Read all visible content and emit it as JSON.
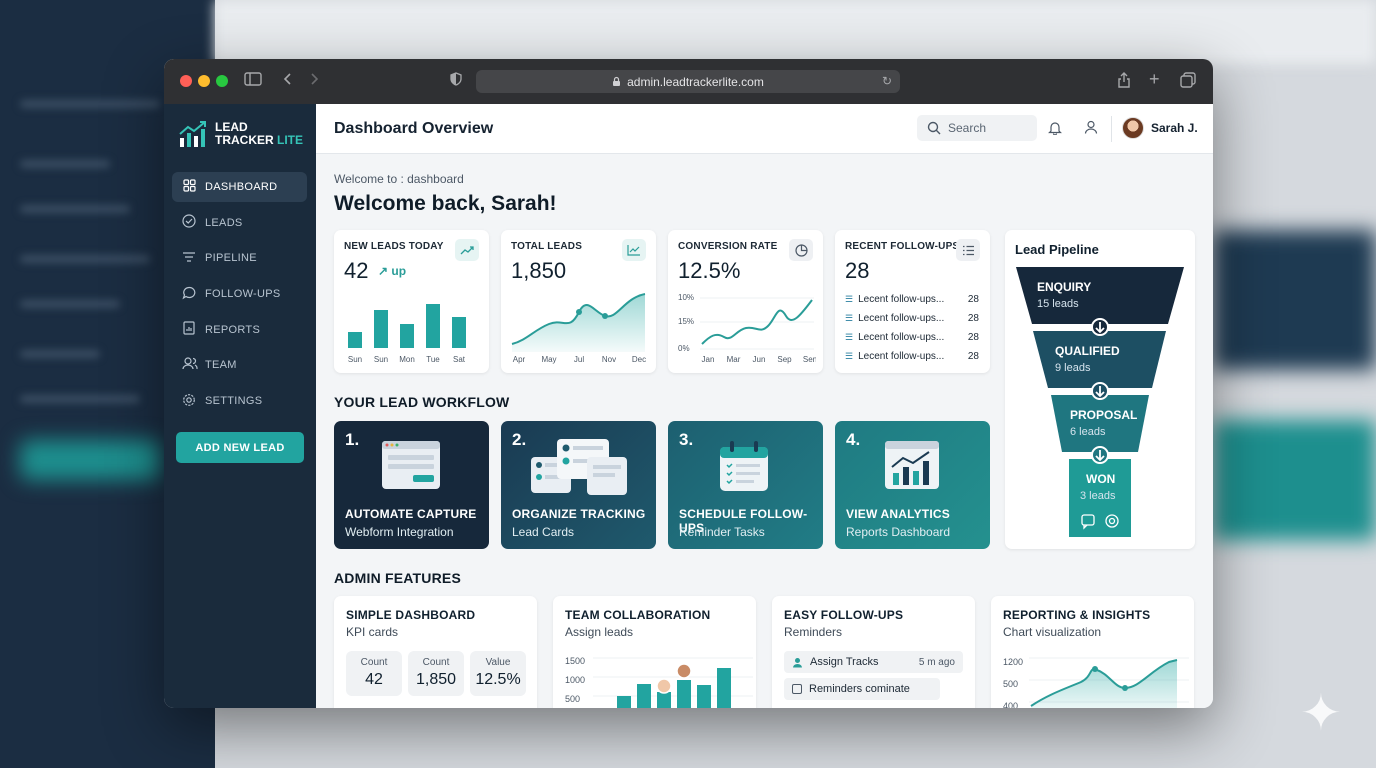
{
  "browser": {
    "url": "admin.leadtrackerlite.com"
  },
  "brand": {
    "line1": "LEAD",
    "line2_a": "TRACKER",
    "line2_b": "LITE"
  },
  "sidebar": {
    "items": [
      {
        "label": "DASHBOARD",
        "icon": "grid-icon"
      },
      {
        "label": "LEADS",
        "icon": "check-circle-icon"
      },
      {
        "label": "PIPELINE",
        "icon": "filter-icon"
      },
      {
        "label": "FOLLOW-UPS",
        "icon": "chat-icon"
      },
      {
        "label": "REPORTS",
        "icon": "report-icon"
      },
      {
        "label": "TEAM",
        "icon": "team-icon"
      },
      {
        "label": "SETTINGS",
        "icon": "gear-icon"
      }
    ],
    "add_button": "ADD NEW LEAD"
  },
  "header": {
    "title": "Dashboard Overview",
    "search_placeholder": "Search",
    "user_name": "Sarah J."
  },
  "breadcrumb": "Welcome to : dashboard",
  "welcome": "Welcome back, Sarah!",
  "kpis": {
    "new_leads": {
      "title": "NEW LEADS TODAY",
      "value": "42",
      "trend": "up",
      "chart": {
        "type": "bar",
        "categories": [
          "Sun",
          "Sun",
          "Mon",
          "Tue",
          "Sat"
        ],
        "values": [
          16,
          38,
          24,
          44,
          31
        ]
      }
    },
    "total_leads": {
      "title": "TOTAL LEADS",
      "value": "1,850",
      "chart": {
        "type": "area",
        "x": [
          "Apr",
          "May",
          "Jul",
          "Nov",
          "Dec"
        ]
      }
    },
    "conversion": {
      "title": "CONVERSION RATE",
      "value": "12.5%",
      "chart": {
        "type": "line",
        "x": [
          "Jan",
          "Mar",
          "Jun",
          "Sep",
          "Sen"
        ],
        "y_ticks": [
          "10%",
          "15%",
          "0%"
        ]
      }
    },
    "followups": {
      "title": "RECENT FOLLOW-UPS",
      "value": "28",
      "rows": [
        {
          "label": "Lecent follow-ups...",
          "count": "28"
        },
        {
          "label": "Lecent follow-ups...",
          "count": "28"
        },
        {
          "label": "Lecent follow-ups...",
          "count": "28"
        },
        {
          "label": "Lecent follow-ups...",
          "count": "28"
        }
      ]
    }
  },
  "workflow": {
    "heading": "YOUR LEAD WORKFLOW",
    "steps": [
      {
        "num": "1.",
        "title": "AUTOMATE CAPTURE",
        "sub": "Webform Integration",
        "color": "#16283b"
      },
      {
        "num": "2.",
        "title": "ORGANIZE TRACKING",
        "sub": "Lead Cards",
        "color": "#1c4a5e"
      },
      {
        "num": "3.",
        "title": "SCHEDULE FOLLOW-UPS",
        "sub": "Reminder Tasks",
        "color": "#1f6f7c"
      },
      {
        "num": "4.",
        "title": "VIEW ANALYTICS",
        "sub": "Reports Dashboard",
        "color": "#21878a"
      }
    ]
  },
  "pipeline": {
    "title": "Lead Pipeline",
    "stages": [
      {
        "name": "ENQUIRY",
        "leads": "15 leads",
        "color": "#16283b"
      },
      {
        "name": "QUALIFIED",
        "leads": "9 leads",
        "color": "#1d4f63"
      },
      {
        "name": "PROPOSAL",
        "leads": "6 leads",
        "color": "#1f7680"
      },
      {
        "name": "WON",
        "leads": "3 leads",
        "color": "#1f9b96"
      }
    ]
  },
  "admin": {
    "heading": "ADMIN FEATURES",
    "cards": [
      {
        "title": "SIMPLE DASHBOARD",
        "sub": "KPI cards",
        "counts": [
          {
            "label": "Count",
            "value": "42"
          },
          {
            "label": "Count",
            "value": "1,850"
          },
          {
            "label": "Value",
            "value": "12.5%"
          }
        ]
      },
      {
        "title": "TEAM COLLABORATION",
        "sub": "Assign leads",
        "y_ticks": [
          "1500",
          "1000",
          "500"
        ]
      },
      {
        "title": "EASY FOLLOW-UPS",
        "sub": "Reminders",
        "items": [
          {
            "label": "Assign Tracks",
            "time": "5 m ago"
          },
          {
            "label": "Reminders cominate"
          }
        ]
      },
      {
        "title": "REPORTING & INSIGHTS",
        "sub": "Chart visualization",
        "y_ticks": [
          "1200",
          "500",
          "400"
        ]
      }
    ]
  }
}
